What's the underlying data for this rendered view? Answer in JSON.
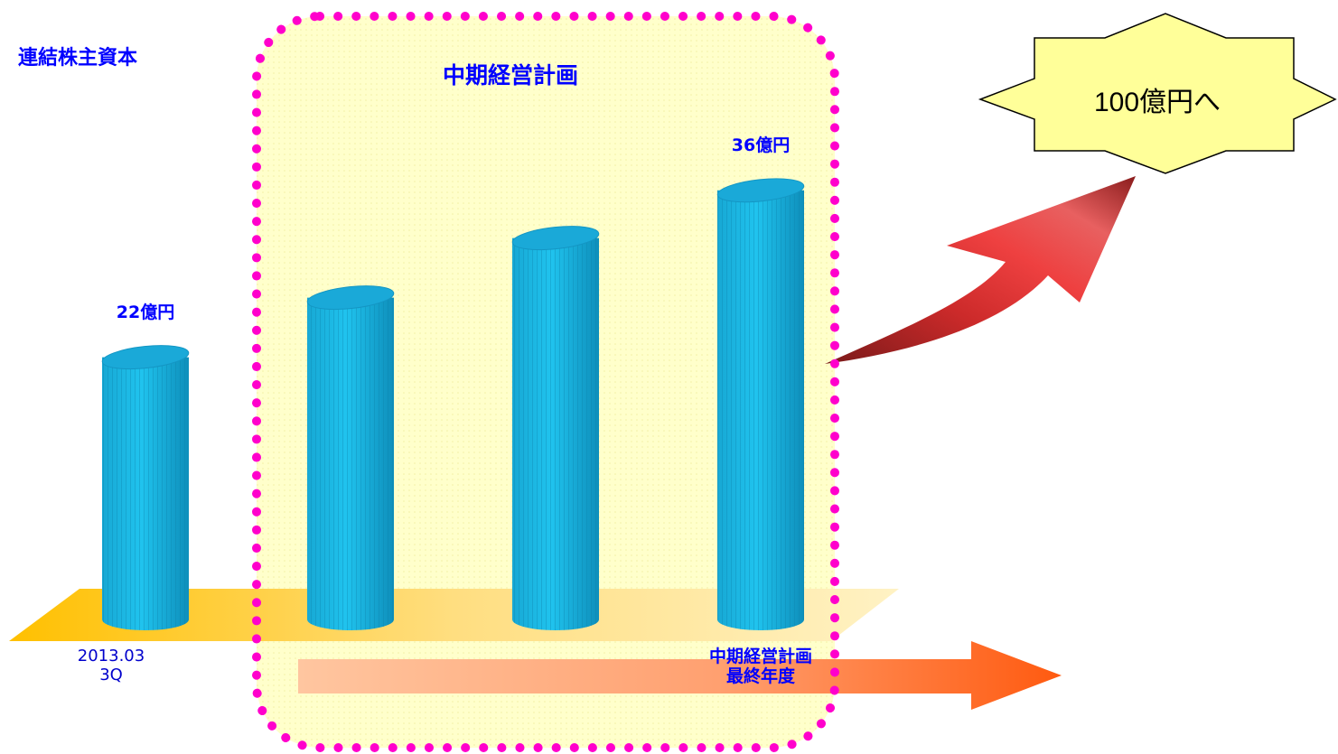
{
  "chart_data": {
    "type": "bar",
    "title": "連結株主資本",
    "categories": [
      "2013.03 3Q",
      "",
      "",
      "中期経営計画 最終年度"
    ],
    "series": [
      {
        "values": [
          22,
          27,
          32,
          36
        ]
      }
    ],
    "data_labels": [
      "22億円",
      "",
      "",
      "36億円"
    ],
    "ylim": [
      0,
      40
    ],
    "grid": false,
    "bar_color": "#1ab2dd",
    "highlight_region": {
      "label": "中期経営計画",
      "covers_categories": [
        1,
        2,
        3
      ],
      "fill": "#ffffc8",
      "border": "#ff00cc"
    },
    "target": {
      "label": "100億円へ",
      "value": 100,
      "fill": "#ffff99"
    }
  },
  "tick_lines": [
    [
      "2013.03",
      "3Q"
    ],
    [],
    [],
    [
      "中期経営計画",
      "最終年度"
    ]
  ]
}
